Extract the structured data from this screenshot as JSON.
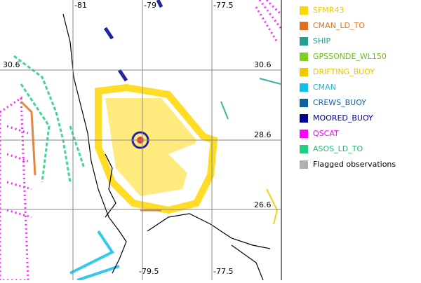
{
  "map": {
    "top_labels": [
      "-81",
      "-79",
      "-77.5"
    ],
    "left_labels": [
      "30.6"
    ],
    "right_labels": [
      "30.6",
      "28.6",
      "26.6"
    ],
    "bottom_labels": [
      "-79.5",
      "-77.5"
    ]
  },
  "legend": [
    {
      "label": "SFMR43",
      "color": "#ffd700",
      "label_color": "#e8c800"
    },
    {
      "label": "CMAN_LD_TO",
      "color": "#e07020",
      "label_color": "#e07020"
    },
    {
      "label": "SHIP",
      "color": "#20a090",
      "label_color": "#20a090"
    },
    {
      "label": "GPSSONDE_WL150",
      "color": "#80d020",
      "label_color": "#70c010"
    },
    {
      "label": "DRIFTING_BUOY",
      "color": "#f0c800",
      "label_color": "#e8c000"
    },
    {
      "label": "CMAN",
      "color": "#10c0e8",
      "label_color": "#10b8e0"
    },
    {
      "label": "CREWS_BUOY",
      "color": "#1060a0",
      "label_color": "#1060a0"
    },
    {
      "label": "MOORED_BUOY",
      "color": "#000090",
      "label_color": "#000090"
    },
    {
      "label": "QSCAT",
      "color": "#ff00ff",
      "label_color": "#ff00ff"
    },
    {
      "label": "ASOS_LD_TO",
      "color": "#20d080",
      "label_color": "#20c070"
    },
    {
      "label": "Flagged observations",
      "color": "#b0b0b0",
      "label_color": "#000000"
    }
  ]
}
